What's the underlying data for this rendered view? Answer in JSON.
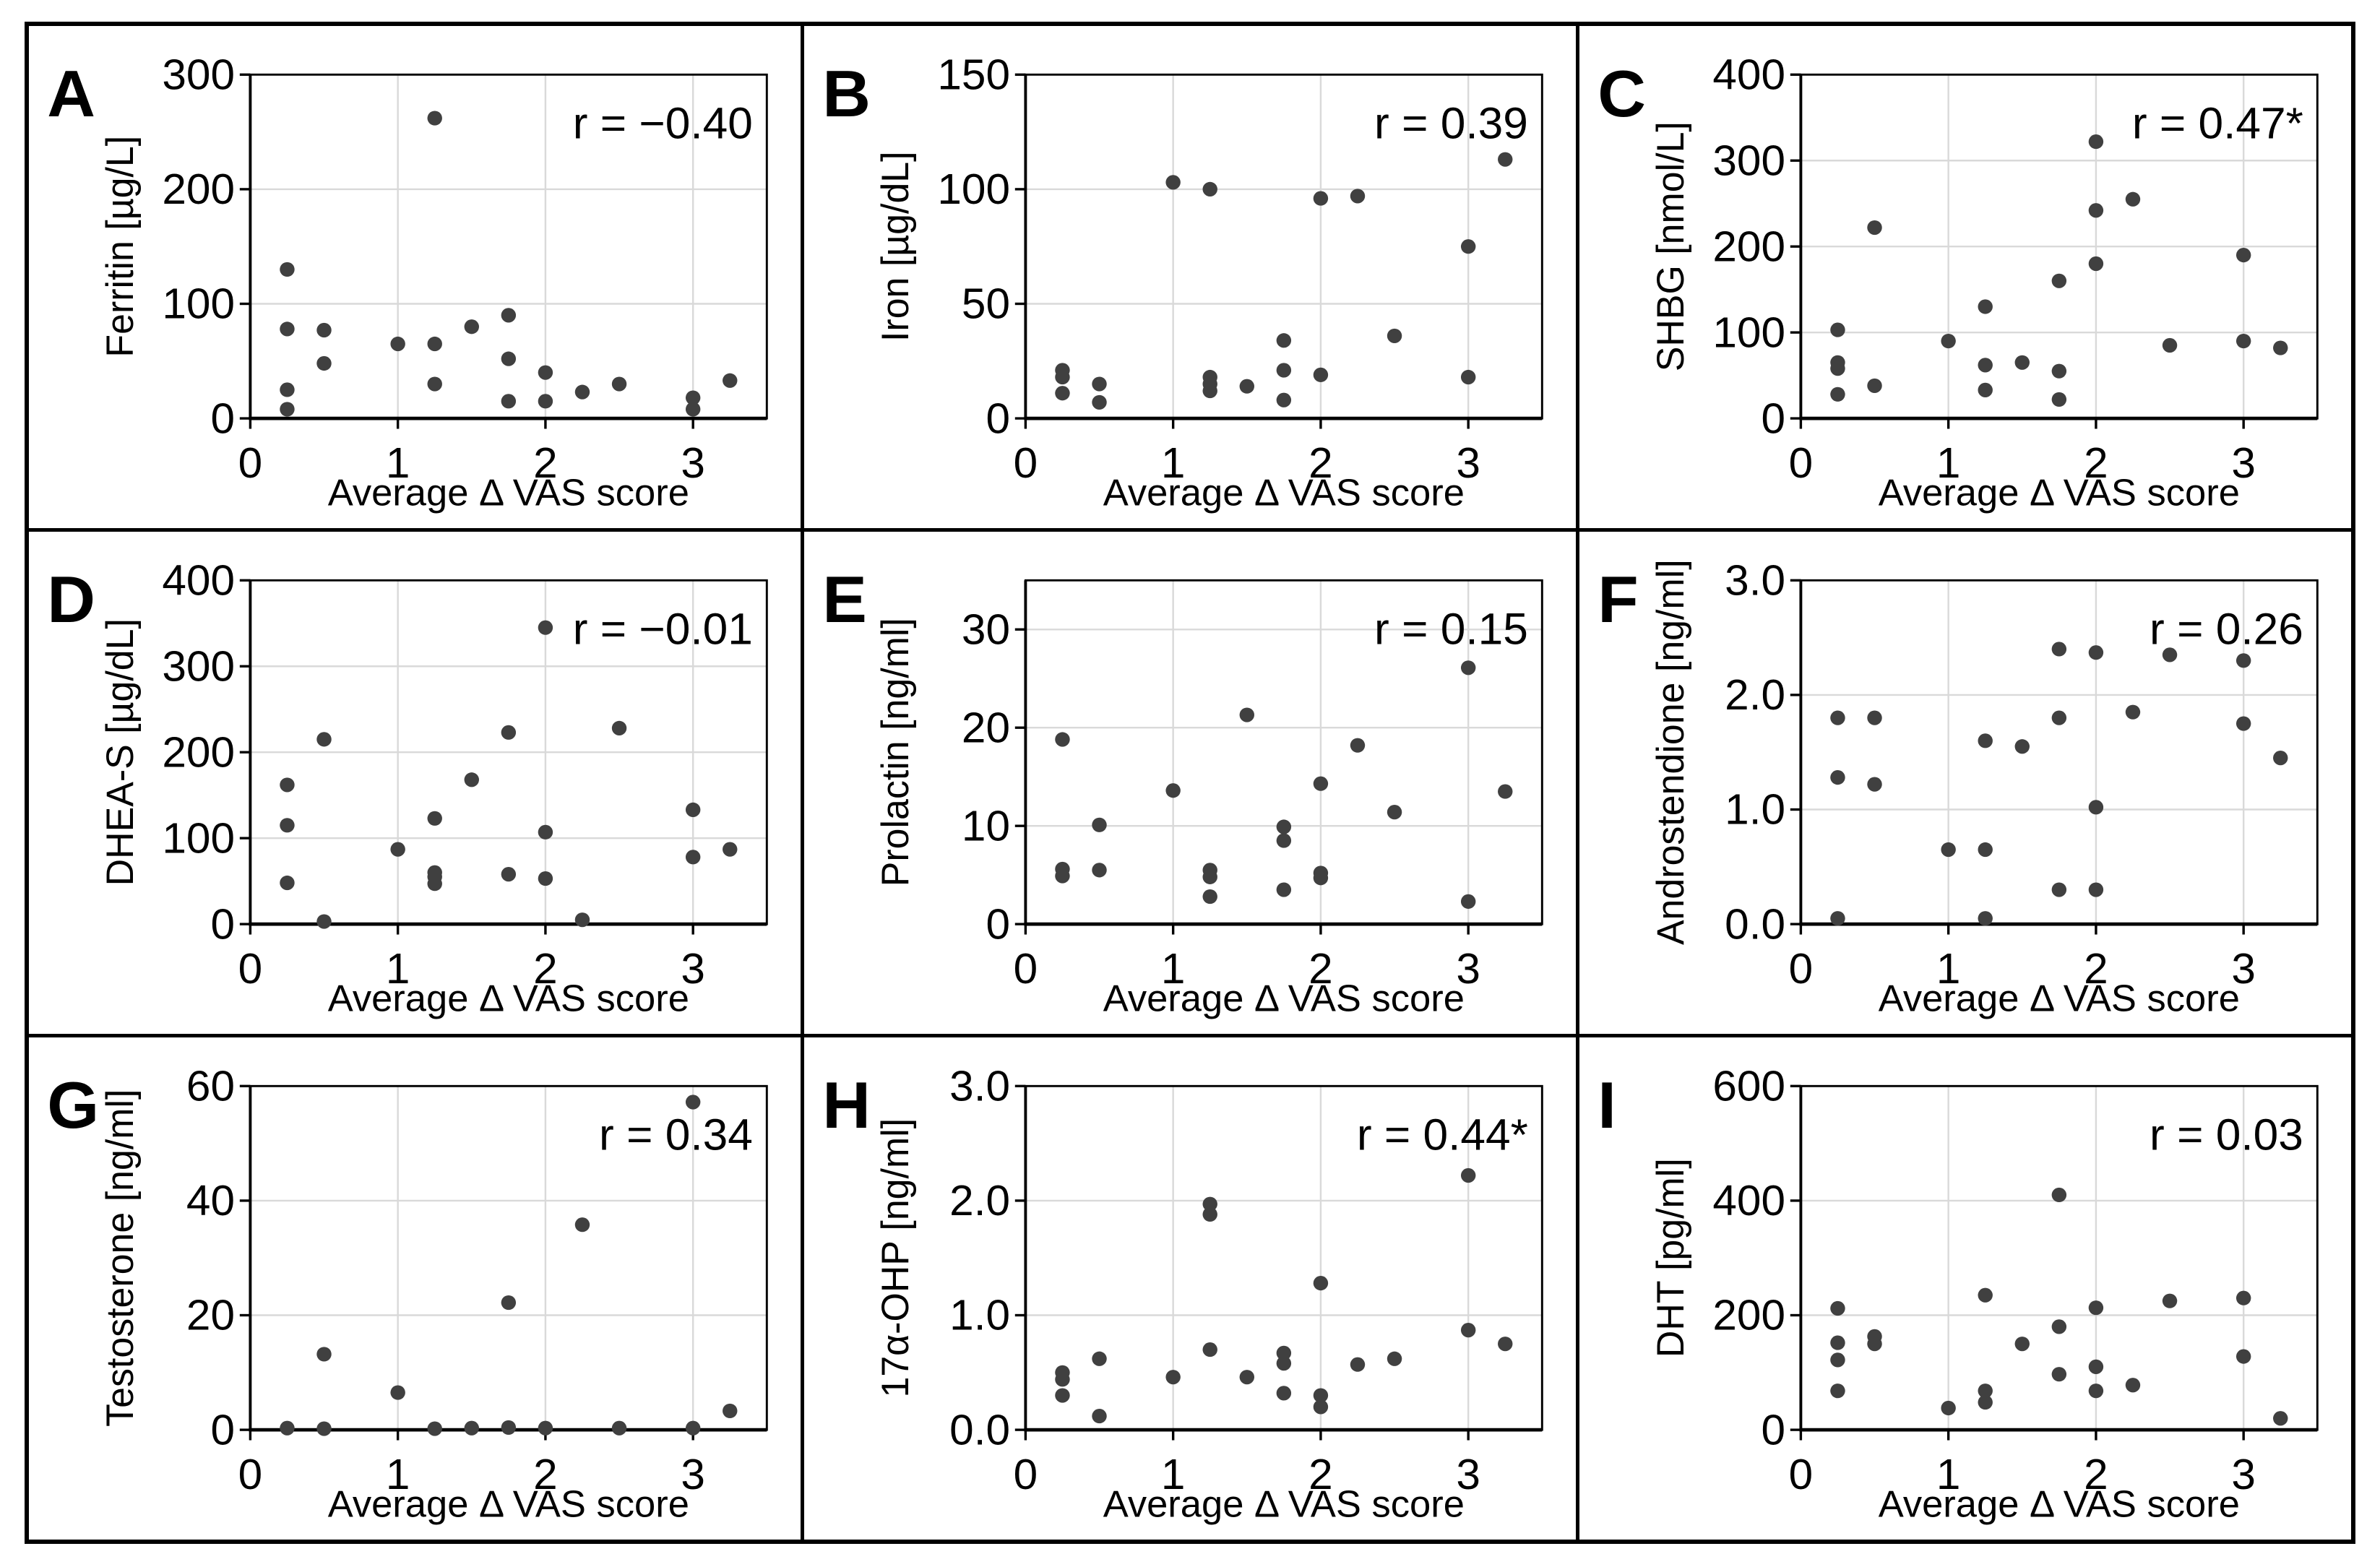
{
  "figure": {
    "shared_x_axis_label": "Average Δ VAS score",
    "colors": {
      "point": "#404040",
      "grid": "#d9d9d9",
      "frame": "#000000",
      "r_default": "#000000",
      "r_significant": "#0b5fcc"
    }
  },
  "chart_data": [
    {
      "type": "scatter",
      "panel": "A",
      "ylabel": "Ferritin [µg/L]",
      "xlabel": "Average Δ VAS score",
      "r_label": "r = −0.40",
      "r_color": "#000000",
      "xlim": [
        0,
        3.5
      ],
      "ylim": [
        0,
        300
      ],
      "grid": true,
      "xticks": [
        "0",
        "1",
        "2",
        "3"
      ],
      "yticks": [
        "0",
        "100",
        "200",
        "300"
      ],
      "points": [
        [
          0.25,
          130
        ],
        [
          0.25,
          78
        ],
        [
          0.25,
          25
        ],
        [
          0.25,
          8
        ],
        [
          0.5,
          77
        ],
        [
          0.5,
          48
        ],
        [
          1.0,
          65
        ],
        [
          1.25,
          262
        ],
        [
          1.25,
          65
        ],
        [
          1.25,
          30
        ],
        [
          1.5,
          80
        ],
        [
          1.75,
          90
        ],
        [
          1.75,
          52
        ],
        [
          1.75,
          15
        ],
        [
          2.0,
          40
        ],
        [
          2.0,
          15
        ],
        [
          2.25,
          23
        ],
        [
          2.5,
          30
        ],
        [
          3.0,
          18
        ],
        [
          3.0,
          8
        ],
        [
          3.25,
          33
        ]
      ]
    },
    {
      "type": "scatter",
      "panel": "B",
      "ylabel": "Iron [µg/dL]",
      "xlabel": "Average Δ VAS score",
      "r_label": "r = 0.39",
      "r_color": "#000000",
      "xlim": [
        0,
        3.5
      ],
      "ylim": [
        0,
        150
      ],
      "grid": true,
      "xticks": [
        "0",
        "1",
        "2",
        "3"
      ],
      "yticks": [
        "0",
        "50",
        "100",
        "150"
      ],
      "points": [
        [
          0.25,
          21
        ],
        [
          0.25,
          18
        ],
        [
          0.25,
          11
        ],
        [
          0.5,
          15
        ],
        [
          0.5,
          7
        ],
        [
          1.0,
          103
        ],
        [
          1.25,
          100
        ],
        [
          1.25,
          18
        ],
        [
          1.25,
          15
        ],
        [
          1.25,
          12
        ],
        [
          1.5,
          14
        ],
        [
          1.75,
          34
        ],
        [
          1.75,
          21
        ],
        [
          1.75,
          8
        ],
        [
          2.0,
          96
        ],
        [
          2.0,
          19
        ],
        [
          2.25,
          97
        ],
        [
          2.5,
          36
        ],
        [
          3.0,
          75
        ],
        [
          3.0,
          18
        ],
        [
          3.25,
          113
        ]
      ]
    },
    {
      "type": "scatter",
      "panel": "C",
      "ylabel": "SHBG [nmol/L]",
      "xlabel": "Average Δ VAS score",
      "r_label": "r = 0.47*",
      "r_color": "#0b5fcc",
      "xlim": [
        0,
        3.5
      ],
      "ylim": [
        0,
        400
      ],
      "grid": true,
      "xticks": [
        "0",
        "1",
        "2",
        "3"
      ],
      "yticks": [
        "0",
        "100",
        "200",
        "300",
        "400"
      ],
      "points": [
        [
          0.25,
          103
        ],
        [
          0.25,
          65
        ],
        [
          0.25,
          58
        ],
        [
          0.25,
          28
        ],
        [
          0.5,
          222
        ],
        [
          0.5,
          38
        ],
        [
          1.0,
          90
        ],
        [
          1.25,
          130
        ],
        [
          1.25,
          62
        ],
        [
          1.25,
          33
        ],
        [
          1.5,
          65
        ],
        [
          1.75,
          160
        ],
        [
          1.75,
          55
        ],
        [
          1.75,
          22
        ],
        [
          2.0,
          322
        ],
        [
          2.0,
          242
        ],
        [
          2.0,
          180
        ],
        [
          2.25,
          255
        ],
        [
          2.5,
          85
        ],
        [
          3.0,
          190
        ],
        [
          3.0,
          90
        ],
        [
          3.25,
          82
        ]
      ]
    },
    {
      "type": "scatter",
      "panel": "D",
      "ylabel": "DHEA-S [µg/dL]",
      "xlabel": "Average Δ VAS score",
      "r_label": "r = −0.01",
      "r_color": "#000000",
      "xlim": [
        0,
        3.5
      ],
      "ylim": [
        0,
        400
      ],
      "grid": true,
      "xticks": [
        "0",
        "1",
        "2",
        "3"
      ],
      "yticks": [
        "0",
        "100",
        "200",
        "300",
        "400"
      ],
      "points": [
        [
          0.25,
          162
        ],
        [
          0.25,
          115
        ],
        [
          0.25,
          48
        ],
        [
          0.5,
          215
        ],
        [
          0.5,
          3
        ],
        [
          1.0,
          87
        ],
        [
          1.25,
          123
        ],
        [
          1.25,
          60
        ],
        [
          1.25,
          55
        ],
        [
          1.25,
          47
        ],
        [
          1.5,
          168
        ],
        [
          1.75,
          223
        ],
        [
          1.75,
          58
        ],
        [
          2.0,
          345
        ],
        [
          2.0,
          107
        ],
        [
          2.0,
          53
        ],
        [
          2.25,
          5
        ],
        [
          2.5,
          228
        ],
        [
          3.0,
          133
        ],
        [
          3.0,
          78
        ],
        [
          3.25,
          87
        ]
      ]
    },
    {
      "type": "scatter",
      "panel": "E",
      "ylabel": "Prolactin [ng/ml]",
      "xlabel": "Average Δ VAS score",
      "r_label": "r = 0.15",
      "r_color": "#000000",
      "xlim": [
        0,
        3.5
      ],
      "ylim": [
        0,
        35
      ],
      "grid": true,
      "xticks": [
        "0",
        "1",
        "2",
        "3"
      ],
      "yticks": [
        "0",
        "10",
        "20",
        "30"
      ],
      "points": [
        [
          0.25,
          18.8
        ],
        [
          0.25,
          5.6
        ],
        [
          0.25,
          4.9
        ],
        [
          0.5,
          10.1
        ],
        [
          0.5,
          5.5
        ],
        [
          1.0,
          13.6
        ],
        [
          1.25,
          5.5
        ],
        [
          1.25,
          4.8
        ],
        [
          1.25,
          2.8
        ],
        [
          1.5,
          21.3
        ],
        [
          1.75,
          9.9
        ],
        [
          1.75,
          8.5
        ],
        [
          1.75,
          3.5
        ],
        [
          2.0,
          14.3
        ],
        [
          2.0,
          5.2
        ],
        [
          2.0,
          4.7
        ],
        [
          2.25,
          18.2
        ],
        [
          2.5,
          11.4
        ],
        [
          3.0,
          26.1
        ],
        [
          3.0,
          2.3
        ],
        [
          3.25,
          13.5
        ]
      ]
    },
    {
      "type": "scatter",
      "panel": "F",
      "ylabel": "Androstendione [ng/ml]",
      "xlabel": "Average Δ VAS score",
      "r_label": "r = 0.26",
      "r_color": "#000000",
      "xlim": [
        0,
        3.5
      ],
      "ylim": [
        0,
        3.0
      ],
      "grid": true,
      "xticks": [
        "0",
        "1",
        "2",
        "3"
      ],
      "yticks": [
        "0.0",
        "1.0",
        "2.0",
        "3.0"
      ],
      "points": [
        [
          0.25,
          1.8
        ],
        [
          0.25,
          1.28
        ],
        [
          0.25,
          0.05
        ],
        [
          0.5,
          1.8
        ],
        [
          0.5,
          1.22
        ],
        [
          1.0,
          0.65
        ],
        [
          1.25,
          1.6
        ],
        [
          1.25,
          0.65
        ],
        [
          1.25,
          0.05
        ],
        [
          1.5,
          1.55
        ],
        [
          1.75,
          2.4
        ],
        [
          1.75,
          1.8
        ],
        [
          1.75,
          0.3
        ],
        [
          2.0,
          2.37
        ],
        [
          2.0,
          1.02
        ],
        [
          2.0,
          0.3
        ],
        [
          2.25,
          1.85
        ],
        [
          2.5,
          2.35
        ],
        [
          3.0,
          2.3
        ],
        [
          3.0,
          1.75
        ],
        [
          3.25,
          1.45
        ]
      ]
    },
    {
      "type": "scatter",
      "panel": "G",
      "ylabel": "Testosterone [ng/ml]",
      "xlabel": "Average Δ VAS score",
      "r_label": "r = 0.34",
      "r_color": "#000000",
      "xlim": [
        0,
        3.5
      ],
      "ylim": [
        0,
        60
      ],
      "grid": true,
      "xticks": [
        "0",
        "1",
        "2",
        "3"
      ],
      "yticks": [
        "0",
        "20",
        "40",
        "60"
      ],
      "points": [
        [
          0.25,
          0.3
        ],
        [
          0.5,
          13.2
        ],
        [
          0.5,
          0.2
        ],
        [
          1.0,
          6.5
        ],
        [
          1.25,
          0.2
        ],
        [
          1.5,
          0.3
        ],
        [
          1.75,
          22.2
        ],
        [
          1.75,
          0.4
        ],
        [
          2.0,
          0.3
        ],
        [
          2.25,
          35.8
        ],
        [
          2.5,
          0.3
        ],
        [
          3.0,
          57.2
        ],
        [
          3.0,
          0.3
        ],
        [
          3.25,
          3.3
        ]
      ]
    },
    {
      "type": "scatter",
      "panel": "H",
      "ylabel": "17α-OHP [ng/ml]",
      "xlabel": "Average Δ VAS score",
      "r_label": "r = 0.44*",
      "r_color": "#0b5fcc",
      "xlim": [
        0,
        3.5
      ],
      "ylim": [
        0,
        3.0
      ],
      "grid": true,
      "xticks": [
        "0",
        "1",
        "2",
        "3"
      ],
      "yticks": [
        "0.0",
        "1.0",
        "2.0",
        "3.0"
      ],
      "points": [
        [
          0.25,
          0.5
        ],
        [
          0.25,
          0.44
        ],
        [
          0.25,
          0.3
        ],
        [
          0.5,
          0.62
        ],
        [
          0.5,
          0.12
        ],
        [
          1.0,
          0.46
        ],
        [
          1.25,
          1.97
        ],
        [
          1.25,
          1.88
        ],
        [
          1.25,
          0.7
        ],
        [
          1.5,
          0.46
        ],
        [
          1.75,
          0.67
        ],
        [
          1.75,
          0.58
        ],
        [
          1.75,
          0.32
        ],
        [
          2.0,
          1.28
        ],
        [
          2.0,
          0.3
        ],
        [
          2.0,
          0.2
        ],
        [
          2.25,
          0.57
        ],
        [
          2.5,
          0.62
        ],
        [
          3.0,
          2.22
        ],
        [
          3.0,
          0.87
        ],
        [
          3.25,
          0.75
        ]
      ]
    },
    {
      "type": "scatter",
      "panel": "I",
      "ylabel": "DHT [pg/ml]",
      "xlabel": "Average Δ VAS score",
      "r_label": "r = 0.03",
      "r_color": "#000000",
      "xlim": [
        0,
        3.5
      ],
      "ylim": [
        0,
        600
      ],
      "grid": true,
      "xticks": [
        "0",
        "1",
        "2",
        "3"
      ],
      "yticks": [
        "0",
        "200",
        "400",
        "600"
      ],
      "points": [
        [
          0.25,
          212
        ],
        [
          0.25,
          152
        ],
        [
          0.25,
          122
        ],
        [
          0.25,
          68
        ],
        [
          0.5,
          163
        ],
        [
          0.5,
          150
        ],
        [
          1.0,
          38
        ],
        [
          1.25,
          235
        ],
        [
          1.25,
          68
        ],
        [
          1.25,
          48
        ],
        [
          1.5,
          150
        ],
        [
          1.75,
          410
        ],
        [
          1.75,
          180
        ],
        [
          1.75,
          97
        ],
        [
          2.0,
          213
        ],
        [
          2.0,
          110
        ],
        [
          2.0,
          68
        ],
        [
          2.25,
          78
        ],
        [
          2.5,
          225
        ],
        [
          3.0,
          230
        ],
        [
          3.0,
          128
        ],
        [
          3.25,
          20
        ]
      ]
    }
  ]
}
